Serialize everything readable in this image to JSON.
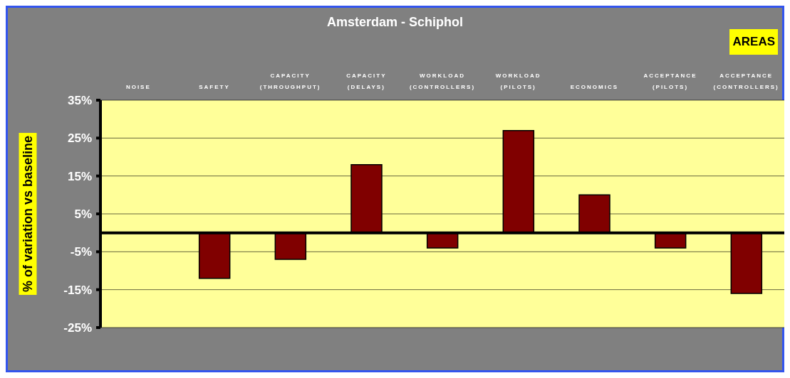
{
  "chart_data": {
    "type": "bar",
    "title": "Amsterdam - Schiphol",
    "ylabel": "% of variation vs baseline",
    "annotations": [
      "AREAS"
    ],
    "categories": [
      "NOISE",
      "SAFETY",
      "CAPACITY\n(THROUGHPUT)",
      "CAPACITY\n(DELAYS)",
      "WORKLOAD\n(CONTROLLERS)",
      "WORKLOAD\n(PILOTS)",
      "ECONOMICS",
      "ACCEPTANCE\n(PILOTS)",
      "ACCEPTANCE\n(CONTROLLERS)"
    ],
    "values": [
      null,
      -12,
      -7,
      18,
      -4,
      27,
      10,
      -4,
      -16
    ],
    "color": "#800000",
    "ylim": [
      -25,
      35
    ],
    "yticks": [
      {
        "value": 35,
        "label": "35%"
      },
      {
        "value": 25,
        "label": "25%"
      },
      {
        "value": 15,
        "label": "15%"
      },
      {
        "value": 5,
        "label": "5%"
      },
      {
        "value": -5,
        "label": "-5%"
      },
      {
        "value": -15,
        "label": "-15%"
      },
      {
        "value": -25,
        "label": "-25%"
      }
    ],
    "grid": "y",
    "ref_lines": [
      {
        "axis": "y",
        "value": 0,
        "color": "#000000"
      }
    ]
  }
}
